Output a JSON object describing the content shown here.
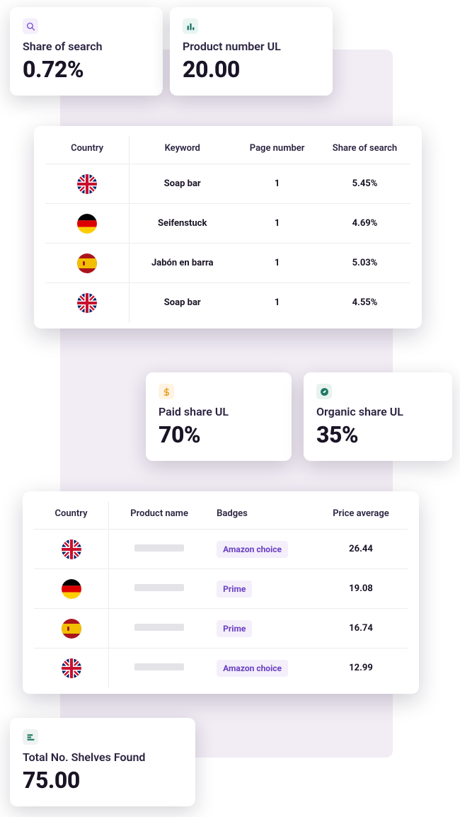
{
  "colors": {
    "card_bg": "#ffffff",
    "panel_bg": "#f2ecf5",
    "text_primary": "#1a1426",
    "text_label": "#2b2340",
    "divider": "#ececf2",
    "badge_bg": "#f4effa",
    "badge_text": "#6a3fc2",
    "placeholder": "#e3e3e8",
    "icon_search_bg": "#f4effa",
    "icon_search_fg": "#7a4fd0",
    "icon_bars_bg": "#e9f5f2",
    "icon_bars_fg": "#0f6b5c",
    "icon_dollar_bg": "#fff4e3",
    "icon_dollar_fg": "#e59b1a",
    "icon_leaf_bg": "#e8f3ef",
    "icon_leaf_fg": "#1f7a63",
    "icon_shelves_bg": "#eef3f1",
    "icon_shelves_fg": "#1f7a63"
  },
  "metrics": {
    "share_of_search": {
      "label": "Share of search",
      "value": "0.72%"
    },
    "product_number_ul": {
      "label": "Product number UL",
      "value": "20.00"
    },
    "paid_share_ul": {
      "label": "Paid share UL",
      "value": "70%"
    },
    "organic_share_ul": {
      "label": "Organic share UL",
      "value": "35%"
    },
    "total_shelves": {
      "label": "Total No. Shelves Found",
      "value": "75.00"
    }
  },
  "table1": {
    "columns": [
      "Country",
      "Keyword",
      "Page number",
      "Share of search"
    ],
    "rows": [
      {
        "country": "gb",
        "keyword": "Soap bar",
        "page": "1",
        "share": "5.45%"
      },
      {
        "country": "de",
        "keyword": "Seifenstuck",
        "page": "1",
        "share": "4.69%"
      },
      {
        "country": "es",
        "keyword": "Jabón en barra",
        "page": "1",
        "share": "5.03%"
      },
      {
        "country": "gb",
        "keyword": "Soap bar",
        "page": "1",
        "share": "4.55%"
      }
    ]
  },
  "table2": {
    "columns": [
      "Country",
      "Product name",
      "Badges",
      "Price average"
    ],
    "rows": [
      {
        "country": "gb",
        "badge": "Amazon choice",
        "price": "26.44"
      },
      {
        "country": "de",
        "badge": "Prime",
        "price": "19.08"
      },
      {
        "country": "es",
        "badge": "Prime",
        "price": "16.74"
      },
      {
        "country": "gb",
        "badge": "Amazon choice",
        "price": "12.99"
      }
    ]
  }
}
